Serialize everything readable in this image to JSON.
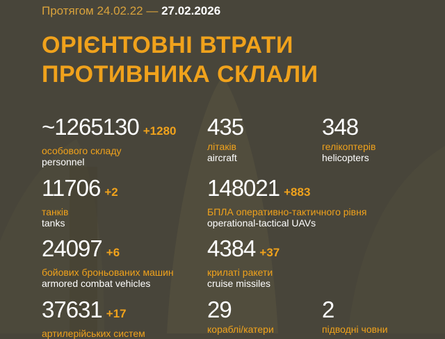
{
  "header": {
    "period_prefix": "Протягом 24.02.22 —",
    "period_end": "27.02.2026",
    "title_line1": "ОРІЄНТОВНІ ВТРАТИ",
    "title_line2": "ПРОТИВНИКА СКЛАЛИ"
  },
  "colors": {
    "background": "#48453a",
    "accent": "#f0a21c",
    "text": "#ffffff"
  },
  "stats": [
    {
      "value": "~1265130",
      "delta": "+1280",
      "ua": "особового складу",
      "en": "personnel"
    },
    {
      "value": "435",
      "delta": "",
      "ua": "літаків",
      "en": "aircraft"
    },
    {
      "value": "348",
      "delta": "",
      "ua": "гелікоптерів",
      "en": "helicopters"
    },
    {
      "value": "11706",
      "delta": "+2",
      "ua": "танків",
      "en": "tanks"
    },
    {
      "value": "148021",
      "delta": "+883",
      "ua": "БПЛА оперативно-тактичного рівня",
      "en": "operational-tactical UAVs"
    },
    {
      "value": "24097",
      "delta": "+6",
      "ua": "бойових броньованих машин",
      "en": "armored combat vehicles"
    },
    {
      "value": "4384",
      "delta": "+37",
      "ua": "крилаті ракети",
      "en": "cruise missiles"
    },
    {
      "value": "37631",
      "delta": "+17",
      "ua": "артилерійських систем",
      "en": ""
    },
    {
      "value": "29",
      "delta": "",
      "ua": "кораблі/катери",
      "en": ""
    },
    {
      "value": "2",
      "delta": "",
      "ua": "підводні човни",
      "en": ""
    }
  ]
}
